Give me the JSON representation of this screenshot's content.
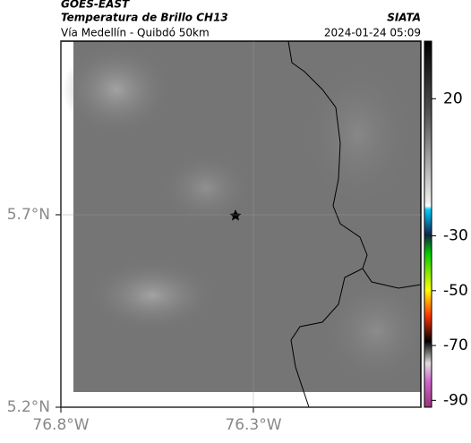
{
  "header": {
    "satellite": "GOES-EAST",
    "title": "Temperatura de Brillo CH13",
    "region": "Vía Medellín - Quibdó 50km",
    "source": "SIATA",
    "datetime": "2024-01-24 05:09"
  },
  "map": {
    "xlim": [
      -76.8,
      -75.865
    ],
    "ylim": [
      5.2,
      6.151
    ],
    "xticks": [
      {
        "value": -76.8,
        "label": "76.8°W"
      },
      {
        "value": -76.3,
        "label": "76.3°W"
      }
    ],
    "yticks": [
      {
        "value": 5.2,
        "label": "5.2°N"
      },
      {
        "value": 5.7,
        "label": "5.7°N"
      }
    ]
  },
  "colorbar": {
    "lim": [
      -92.5,
      41
    ],
    "ticks": [
      20,
      -30,
      -50,
      -70,
      -90
    ]
  }
}
